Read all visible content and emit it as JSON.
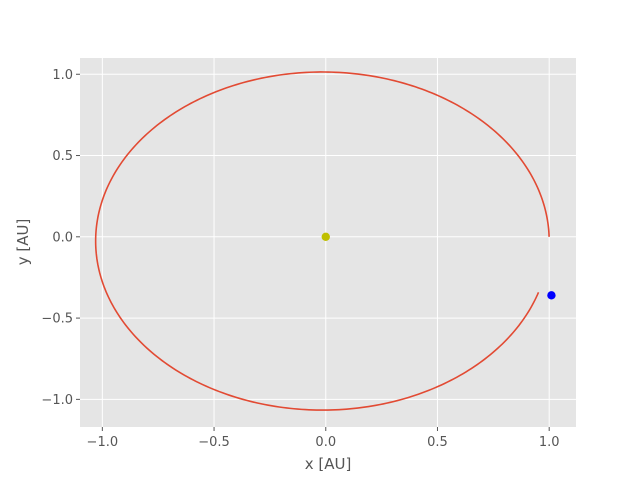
{
  "chart_data": {
    "type": "scatter",
    "title": "",
    "xlabel": "x [AU]",
    "ylabel": "y [AU]",
    "xlim": [
      -1.1,
      1.12
    ],
    "ylim": [
      -1.17,
      1.1
    ],
    "grid": true,
    "background": "#e5e5e5",
    "grid_color": "#ffffff",
    "x_ticks": [
      -1.0,
      -0.5,
      0.0,
      0.5,
      1.0
    ],
    "x_tick_labels": [
      "−1.0",
      "−0.5",
      "0.0",
      "0.5",
      "1.0"
    ],
    "y_ticks": [
      -1.0,
      -0.5,
      0.0,
      0.5,
      1.0
    ],
    "y_tick_labels": [
      "−1.0",
      "−0.5",
      "0.0",
      "0.5",
      "1.0"
    ],
    "orbit": {
      "color": "#e24a33",
      "center": [
        -0.015,
        -0.026
      ],
      "semi_axes": [
        1.015,
        1.04
      ],
      "start_point": [
        1.0,
        0.0
      ],
      "end_point": [
        1.01,
        -0.36
      ]
    },
    "series": [
      {
        "x": [
          0.0
        ],
        "y": [
          0.0
        ],
        "color": "#bfbf00"
      },
      {
        "x": [
          1.01
        ],
        "y": [
          -0.36
        ],
        "color": "#0000ff"
      }
    ]
  }
}
